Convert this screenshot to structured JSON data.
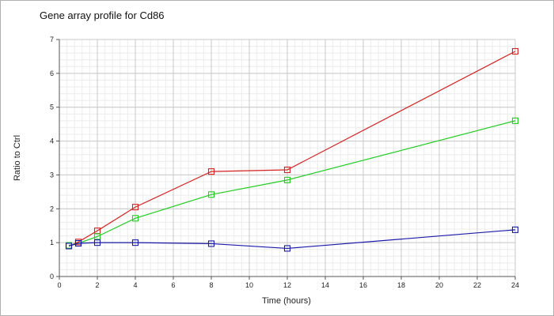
{
  "chart_data": {
    "type": "line",
    "title": "Gene array profile for Cd86",
    "xlabel": "Time (hours)",
    "ylabel": "Ratio to Ctrl",
    "xlim": [
      0,
      24
    ],
    "ylim": [
      0,
      7
    ],
    "xticks": [
      0,
      2,
      4,
      6,
      8,
      10,
      12,
      14,
      16,
      18,
      20,
      22,
      24
    ],
    "yticks": [
      0,
      1,
      2,
      3,
      4,
      5,
      6,
      7
    ],
    "grid": true,
    "legend": "none",
    "series": [
      {
        "color": "#d62020",
        "x": [
          0.5,
          1,
          2,
          4,
          8,
          12,
          24
        ],
        "y": [
          0.9,
          1.02,
          1.35,
          2.05,
          3.1,
          3.15,
          6.65
        ]
      },
      {
        "color": "#22cc22",
        "x": [
          0.5,
          1,
          2,
          4,
          8,
          12,
          24
        ],
        "y": [
          0.92,
          0.98,
          1.18,
          1.72,
          2.42,
          2.85,
          4.6
        ]
      },
      {
        "color": "#1a1aaa",
        "x": [
          0.5,
          1,
          2,
          4,
          8,
          12,
          24
        ],
        "y": [
          0.9,
          0.98,
          1.0,
          1.0,
          0.97,
          0.83,
          1.38
        ]
      }
    ]
  }
}
